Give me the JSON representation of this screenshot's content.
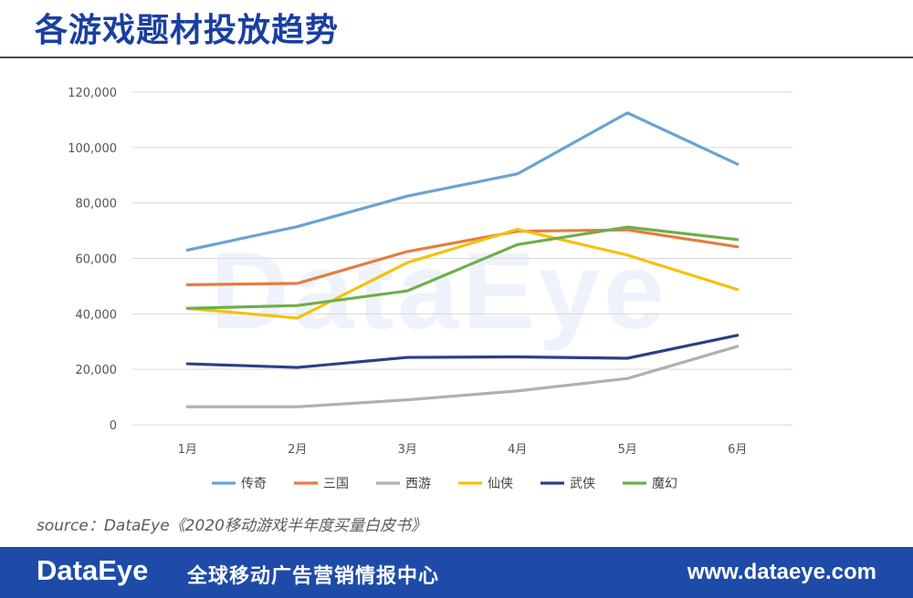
{
  "title": "各游戏题材投放趋势",
  "watermark": "DataEye",
  "source_text": "source：DataEye《2020移动游戏半年度买量白皮书》",
  "footer": {
    "logo": "DataEye",
    "slogan": "全球移动广告营销情报中心",
    "url": "www.dataeye.com"
  },
  "colors": {
    "title": "#1a3fa3",
    "footer_bg": "#1e4ba8"
  },
  "chart_data": {
    "type": "line",
    "categories": [
      "1月",
      "2月",
      "3月",
      "4月",
      "5月",
      "6月"
    ],
    "ylim": [
      0,
      120000
    ],
    "yticks": [
      0,
      20000,
      40000,
      60000,
      80000,
      100000,
      120000
    ],
    "ytick_labels": [
      "0",
      "20,000",
      "40,000",
      "60,000",
      "80,000",
      "100,000",
      "120,000"
    ],
    "grid": true,
    "legend_position": "bottom",
    "series": [
      {
        "name": "传奇",
        "color": "#6aa3d3",
        "values": [
          63000,
          71500,
          82500,
          90500,
          112500,
          94000
        ]
      },
      {
        "name": "三国",
        "color": "#e57c3e",
        "values": [
          50500,
          51000,
          62500,
          69800,
          70300,
          64200
        ]
      },
      {
        "name": "西游",
        "color": "#b0b0b0",
        "values": [
          6500,
          6500,
          9000,
          12200,
          16700,
          28300
        ]
      },
      {
        "name": "仙侠",
        "color": "#f4c20d",
        "values": [
          42000,
          38500,
          58500,
          70500,
          61200,
          48800
        ]
      },
      {
        "name": "武侠",
        "color": "#2c3f86",
        "values": [
          22000,
          20700,
          24300,
          24500,
          24000,
          32300
        ]
      },
      {
        "name": "魔幻",
        "color": "#6fae4a",
        "values": [
          42000,
          43000,
          48300,
          65000,
          71300,
          66800
        ]
      }
    ]
  }
}
